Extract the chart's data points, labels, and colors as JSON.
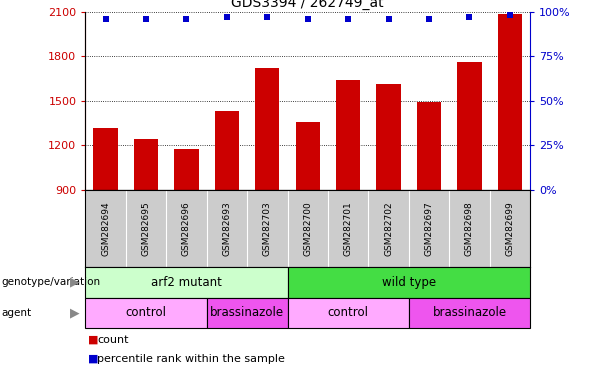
{
  "title": "GDS3394 / 262749_at",
  "samples": [
    "GSM282694",
    "GSM282695",
    "GSM282696",
    "GSM282693",
    "GSM282703",
    "GSM282700",
    "GSM282701",
    "GSM282702",
    "GSM282697",
    "GSM282698",
    "GSM282699"
  ],
  "bar_values": [
    1320,
    1240,
    1175,
    1430,
    1720,
    1360,
    1640,
    1610,
    1490,
    1760,
    2080
  ],
  "percentile_values": [
    96,
    96,
    96,
    97,
    97,
    96,
    96,
    96,
    96,
    97,
    98
  ],
  "bar_color": "#cc0000",
  "dot_color": "#0000cc",
  "ylim_left": [
    900,
    2100
  ],
  "ylim_right": [
    0,
    100
  ],
  "yticks_left": [
    900,
    1200,
    1500,
    1800,
    2100
  ],
  "yticks_right": [
    0,
    25,
    50,
    75,
    100
  ],
  "genotype_groups": [
    {
      "label": "arf2 mutant",
      "start": 0,
      "end": 5,
      "color": "#ccffcc"
    },
    {
      "label": "wild type",
      "start": 5,
      "end": 11,
      "color": "#44dd44"
    }
  ],
  "agent_groups": [
    {
      "label": "control",
      "start": 0,
      "end": 3,
      "color": "#ffaaff"
    },
    {
      "label": "brassinazole",
      "start": 3,
      "end": 5,
      "color": "#ee55ee"
    },
    {
      "label": "control",
      "start": 5,
      "end": 8,
      "color": "#ffaaff"
    },
    {
      "label": "brassinazole",
      "start": 8,
      "end": 11,
      "color": "#ee55ee"
    }
  ],
  "sample_bg_color": "#cccccc",
  "bg_color": "#ffffff",
  "left_label_color": "#cc0000",
  "right_label_color": "#0000cc",
  "fig_width": 5.89,
  "fig_height": 3.84,
  "dpi": 100
}
